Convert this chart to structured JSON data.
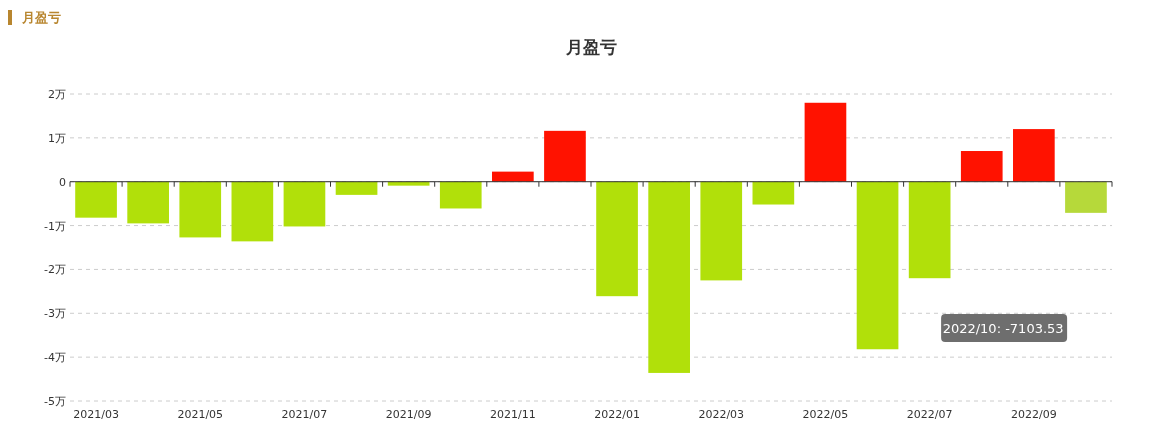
{
  "chart_data": {
    "type": "bar",
    "title": "月盈亏",
    "categories": [
      "2021/03",
      null,
      "2021/05",
      null,
      "2021/07",
      null,
      "2021/09",
      null,
      "2021/11",
      null,
      "2022/01",
      null,
      "2022/03",
      null,
      "2022/05",
      null,
      "2022/07",
      null,
      "2022/09",
      null
    ],
    "values": [
      -0.82,
      -0.95,
      -1.27,
      -1.36,
      -1.02,
      -0.3,
      -0.09,
      -0.61,
      0.23,
      1.16,
      -2.61,
      -4.36,
      -2.25,
      -0.52,
      1.8,
      -3.82,
      -2.2,
      0.7,
      1.2,
      -0.71
    ],
    "colors": [
      "#b1e00a",
      "#b1e00a",
      "#b1e00a",
      "#b1e00a",
      "#b1e00a",
      "#b1e00a",
      "#b1e00a",
      "#b1e00a",
      "#ff1200",
      "#ff1200",
      "#b1e00a",
      "#b1e00a",
      "#b1e00a",
      "#b1e00a",
      "#ff1200",
      "#b1e00a",
      "#b1e00a",
      "#ff1200",
      "#ff1200",
      "#b6d93a"
    ],
    "ylim": [
      -5,
      2
    ],
    "yticks": [
      {
        "value": -5,
        "label": "-5万"
      },
      {
        "value": -4,
        "label": "-4万"
      },
      {
        "value": -3,
        "label": "-3万"
      },
      {
        "value": -2,
        "label": "-2万"
      },
      {
        "value": -1,
        "label": "-1万"
      },
      0,
      {
        "value": 1,
        "label": "1万"
      },
      {
        "value": 2,
        "label": "2万"
      }
    ],
    "grid": "y",
    "annotations": [
      "月盈亏",
      "2022/10: -7103.53"
    ]
  }
}
